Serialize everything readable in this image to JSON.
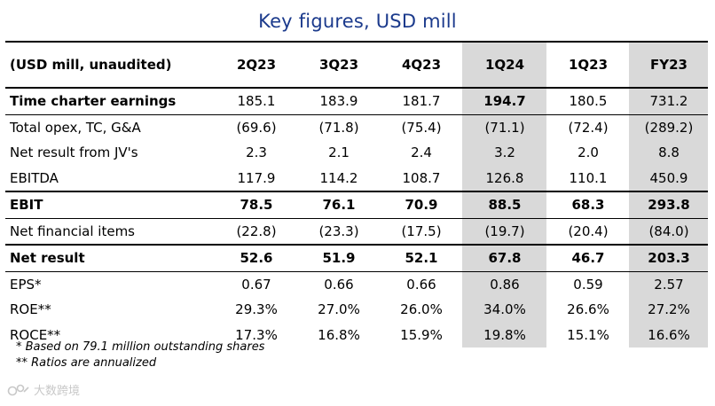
{
  "title": "Key figures, USD mill",
  "table": {
    "header": [
      "(USD mill, unaudited)",
      "2Q23",
      "3Q23",
      "4Q23",
      "1Q24",
      "1Q23",
      "FY23"
    ],
    "rows": [
      {
        "label": "Time charter earnings",
        "values": [
          "185.1",
          "183.9",
          "181.7",
          "194.7",
          "180.5",
          "731.2"
        ]
      },
      {
        "label": "Total opex, TC, G&A",
        "values": [
          "(69.6)",
          "(71.8)",
          "(75.4)",
          "(71.1)",
          "(72.4)",
          "(289.2)"
        ]
      },
      {
        "label": "Net result from JV's",
        "values": [
          "2.3",
          "2.1",
          "2.4",
          "3.2",
          "2.0",
          "8.8"
        ]
      },
      {
        "label": "EBITDA",
        "values": [
          "117.9",
          "114.2",
          "108.7",
          "126.8",
          "110.1",
          "450.9"
        ]
      },
      {
        "label": "EBIT",
        "values": [
          "78.5",
          "76.1",
          "70.9",
          "88.5",
          "68.3",
          "293.8"
        ]
      },
      {
        "label": "Net financial items",
        "values": [
          "(22.8)",
          "(23.3)",
          "(17.5)",
          "(19.7)",
          "(20.4)",
          "(84.0)"
        ]
      },
      {
        "label": "Net result",
        "values": [
          "52.6",
          "51.9",
          "52.1",
          "67.8",
          "46.7",
          "203.3"
        ]
      },
      {
        "label": "EPS*",
        "values": [
          "0.67",
          "0.66",
          "0.66",
          "0.86",
          "0.59",
          "2.57"
        ]
      },
      {
        "label": "ROE**",
        "values": [
          "29.3%",
          "27.0%",
          "26.0%",
          "34.0%",
          "26.6%",
          "27.2%"
        ]
      },
      {
        "label": "ROCE**",
        "values": [
          "17.3%",
          "16.8%",
          "15.9%",
          "19.8%",
          "15.1%",
          "16.6%"
        ]
      }
    ]
  },
  "notes": [
    "* Based on 79.1 million outstanding shares",
    "** Ratios are annualized"
  ],
  "watermark": "大数跨境",
  "colors": {
    "title": "#1b3a8c",
    "highlight": "#d9d9d9"
  }
}
